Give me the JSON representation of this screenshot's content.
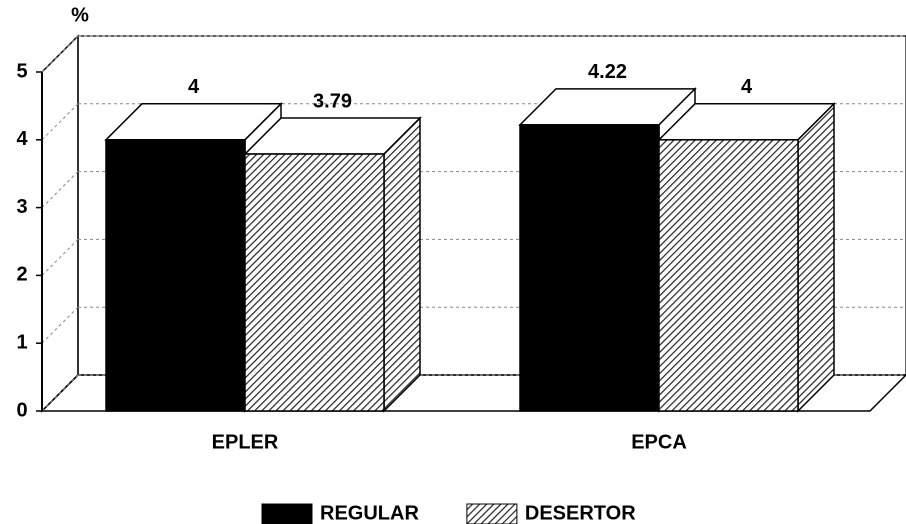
{
  "chart_data": {
    "type": "bar3d",
    "y_label": "%",
    "categories": [
      "EPLER",
      "EPCA"
    ],
    "series": [
      {
        "name": "REGULAR",
        "color": "#000000",
        "hatch": false,
        "values": [
          4,
          4.22
        ]
      },
      {
        "name": "DESERTOR",
        "color": "#222222",
        "hatch": true,
        "values": [
          3.79,
          4
        ]
      }
    ],
    "ylim": [
      0,
      5
    ],
    "yticks": [
      0,
      1,
      2,
      3,
      4,
      5
    ],
    "grid": true,
    "legend": "bottom"
  }
}
